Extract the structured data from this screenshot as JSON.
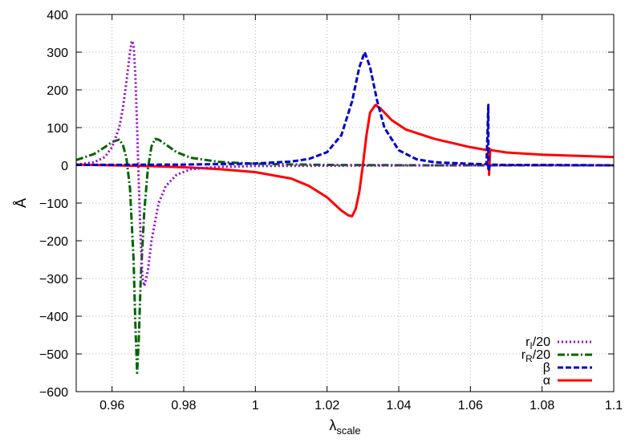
{
  "chart_data": {
    "type": "line",
    "xlabel": "λ",
    "xlabel_sub": "scale",
    "ylabel": "Å",
    "xlim": [
      0.95,
      1.1
    ],
    "ylim": [
      -600,
      400
    ],
    "x_ticks": [
      0.96,
      0.98,
      1,
      1.02,
      1.04,
      1.06,
      1.08,
      1.1
    ],
    "x_tick_labels": [
      "0.96",
      "0.98",
      "1",
      "1.02",
      "1.04",
      "1.06",
      "1.08",
      "1.1"
    ],
    "y_ticks": [
      -600,
      -500,
      -400,
      -300,
      -200,
      -100,
      0,
      100,
      200,
      300,
      400
    ],
    "y_tick_labels": [
      "−600",
      "−500",
      "−400",
      "−300",
      "−200",
      "−100",
      "0",
      "100",
      "200",
      "300",
      "400"
    ],
    "grid": true,
    "legend_position": "bottom-right",
    "series": [
      {
        "name_main": "r",
        "name_sub": "I",
        "name_rest": "/20",
        "color": "#9400d3",
        "style": "dotted",
        "x": [
          0.95,
          0.955,
          0.958,
          0.96,
          0.962,
          0.963,
          0.964,
          0.965,
          0.9655,
          0.966,
          0.9665,
          0.967,
          0.9675,
          0.968,
          0.9685,
          0.969,
          0.97,
          0.971,
          0.973,
          0.975,
          0.978,
          0.982,
          0.99,
          1.0,
          1.02,
          1.05,
          1.1
        ],
        "y": [
          2,
          8,
          22,
          48,
          100,
          150,
          220,
          300,
          330,
          320,
          240,
          100,
          -60,
          -200,
          -300,
          -320,
          -280,
          -200,
          -100,
          -55,
          -25,
          -10,
          -4,
          -2,
          -1,
          0,
          0
        ]
      },
      {
        "name_main": "r",
        "name_sub": "R",
        "name_rest": "/20",
        "color": "#006400",
        "style": "dashdot",
        "x": [
          0.95,
          0.955,
          0.958,
          0.96,
          0.962,
          0.963,
          0.964,
          0.965,
          0.966,
          0.9665,
          0.967,
          0.9675,
          0.968,
          0.969,
          0.97,
          0.971,
          0.972,
          0.973,
          0.975,
          0.978,
          0.982,
          0.99,
          1.0,
          1.02,
          1.05,
          1.1
        ],
        "y": [
          14,
          30,
          48,
          62,
          68,
          55,
          20,
          -60,
          -250,
          -420,
          -550,
          -450,
          -300,
          -120,
          -10,
          50,
          70,
          68,
          55,
          35,
          20,
          9,
          4,
          1,
          0,
          0
        ]
      },
      {
        "name_main": "β",
        "name_sub": "",
        "name_rest": "",
        "color": "#0000cc",
        "style": "dashed",
        "x": [
          0.95,
          0.98,
          1.0,
          1.01,
          1.015,
          1.02,
          1.024,
          1.027,
          1.029,
          1.0305,
          1.032,
          1.034,
          1.036,
          1.04,
          1.045,
          1.05,
          1.06,
          1.0645,
          1.065,
          1.065,
          1.0655,
          1.066,
          1.07,
          1.08,
          1.1
        ],
        "y": [
          1,
          2,
          5,
          10,
          17,
          35,
          80,
          170,
          260,
          300,
          260,
          170,
          100,
          40,
          16,
          8,
          4,
          3,
          160,
          -15,
          2,
          2,
          1,
          1,
          0
        ]
      },
      {
        "name_main": "α",
        "name_sub": "",
        "name_rest": "",
        "color": "#ff0000",
        "style": "solid",
        "x": [
          0.95,
          0.96,
          0.97,
          0.98,
          0.99,
          1.0,
          1.01,
          1.015,
          1.02,
          1.024,
          1.026,
          1.027,
          1.028,
          1.029,
          1.03,
          1.031,
          1.032,
          1.0335,
          1.035,
          1.038,
          1.042,
          1.05,
          1.06,
          1.0648,
          1.0652,
          1.0652,
          1.0655,
          1.066,
          1.07,
          1.08,
          1.1
        ],
        "y": [
          2,
          0,
          -2,
          -5,
          -10,
          -18,
          -35,
          -55,
          -85,
          -120,
          -133,
          -135,
          -115,
          -70,
          0,
          80,
          140,
          160,
          150,
          120,
          95,
          70,
          48,
          40,
          45,
          -25,
          42,
          40,
          34,
          28,
          22
        ]
      }
    ]
  }
}
